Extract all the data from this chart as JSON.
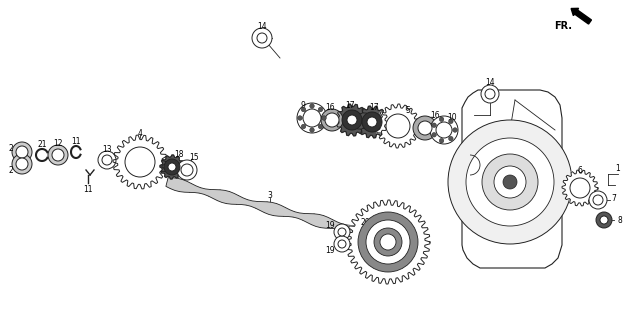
{
  "background_color": "#ffffff",
  "figsize": [
    6.4,
    3.2
  ],
  "dpi": 100,
  "line_color": "#222222",
  "fill_color": "#444444",
  "light_fill": "#888888",
  "shaft_color": "#555555",
  "housing_stroke": "#333333"
}
